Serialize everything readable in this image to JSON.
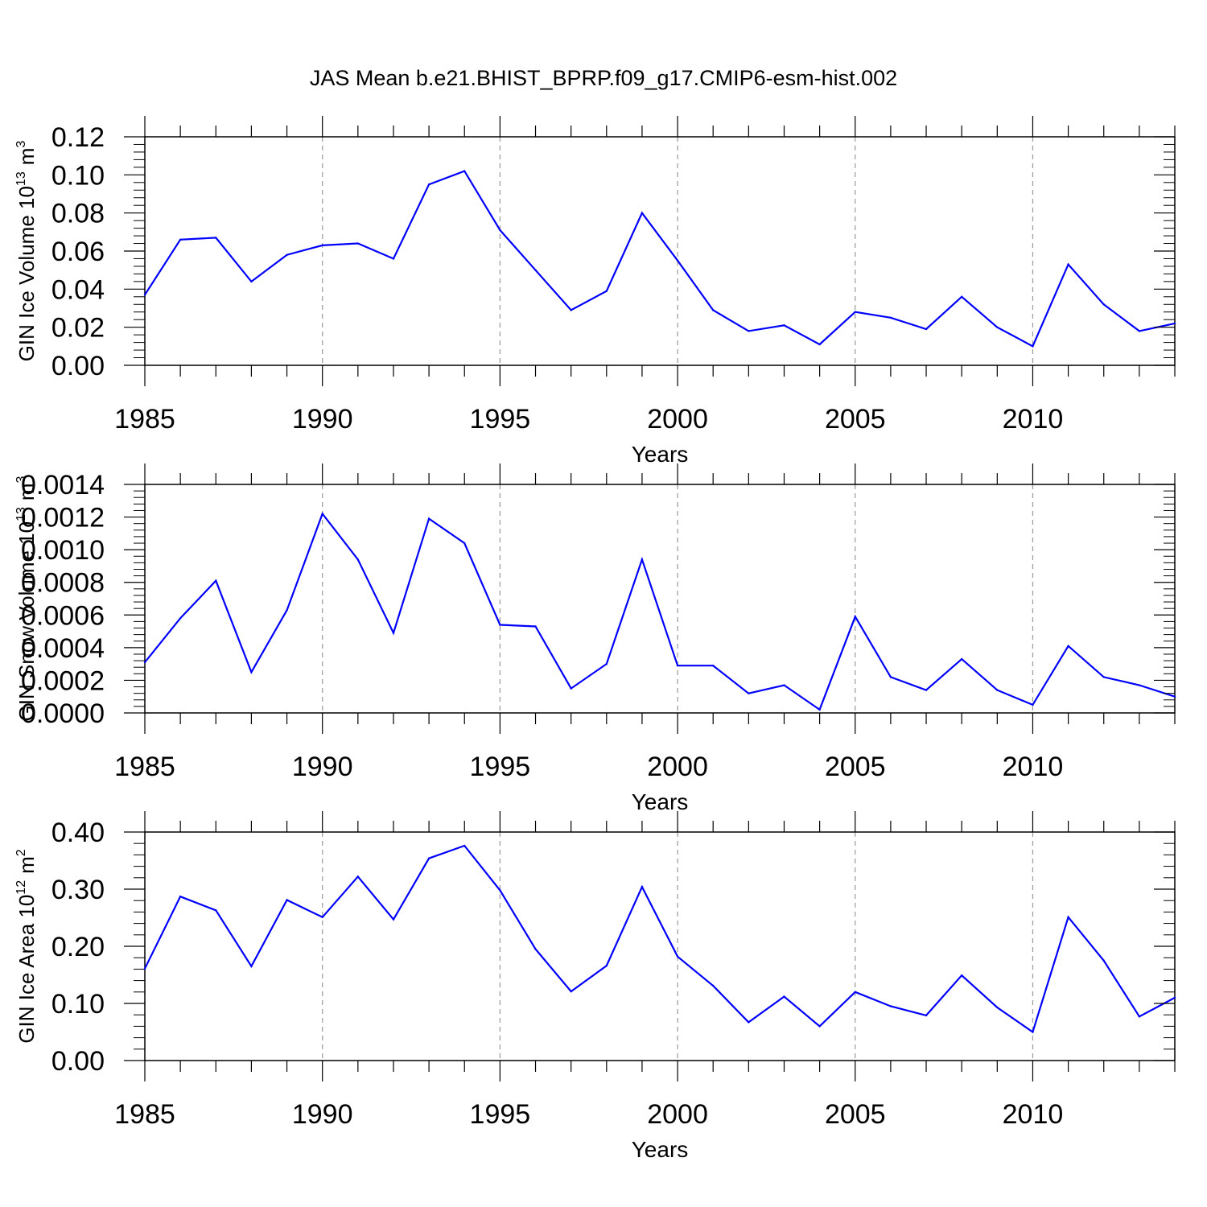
{
  "figure": {
    "title": "JAS Mean b.e21.BHIST_BPRP.f09_g17.CMIP6-esm-hist.002",
    "line_color": "#0000ff",
    "grid_color": "#999999"
  },
  "chart_data": [
    {
      "type": "line",
      "ylabel_main": "GIN Ice Volume 10",
      "ylabel_exp": "13",
      "ylabel_unit": "m",
      "ylabel_unit_exp": "3",
      "xlabel": "Years",
      "xlim": [
        1985,
        2014
      ],
      "ylim": [
        0,
        0.12
      ],
      "x_ticks": [
        "1985",
        "1990",
        "1995",
        "2000",
        "2005",
        "2010"
      ],
      "y_ticks": [
        "0.00",
        "0.02",
        "0.04",
        "0.06",
        "0.08",
        "0.10",
        "0.12"
      ],
      "x": [
        1985,
        1986,
        1987,
        1988,
        1989,
        1990,
        1991,
        1992,
        1993,
        1994,
        1995,
        1996,
        1997,
        1998,
        1999,
        2000,
        2001,
        2002,
        2003,
        2004,
        2005,
        2006,
        2007,
        2008,
        2009,
        2010,
        2011,
        2012,
        2013,
        2014
      ],
      "values": [
        0.037,
        0.066,
        0.067,
        0.044,
        0.058,
        0.063,
        0.064,
        0.056,
        0.095,
        0.102,
        0.071,
        0.05,
        0.029,
        0.039,
        0.08,
        0.055,
        0.029,
        0.018,
        0.021,
        0.011,
        0.028,
        0.025,
        0.019,
        0.036,
        0.02,
        0.01,
        0.053,
        0.032,
        0.018,
        0.022
      ]
    },
    {
      "type": "line",
      "ylabel_main": "GIN Snow Volume 10",
      "ylabel_exp": "13",
      "ylabel_unit": "m",
      "ylabel_unit_exp": "3",
      "xlabel": "Years",
      "xlim": [
        1985,
        2014
      ],
      "ylim": [
        0,
        0.0014
      ],
      "x_ticks": [
        "1985",
        "1990",
        "1995",
        "2000",
        "2005",
        "2010"
      ],
      "y_ticks": [
        "0.0000",
        "0.0002",
        "0.0004",
        "0.0006",
        "0.0008",
        "0.0010",
        "0.0012",
        "0.0014"
      ],
      "x": [
        1985,
        1986,
        1987,
        1988,
        1989,
        1990,
        1991,
        1992,
        1993,
        1994,
        1995,
        1996,
        1997,
        1998,
        1999,
        2000,
        2001,
        2002,
        2003,
        2004,
        2005,
        2006,
        2007,
        2008,
        2009,
        2010,
        2011,
        2012,
        2013,
        2014
      ],
      "values": [
        0.00031,
        0.00058,
        0.00081,
        0.00025,
        0.00063,
        0.00122,
        0.00094,
        0.00049,
        0.00119,
        0.00104,
        0.00054,
        0.00053,
        0.00015,
        0.0003,
        0.00094,
        0.00029,
        0.00029,
        0.00012,
        0.00017,
        2e-05,
        0.00059,
        0.00022,
        0.00014,
        0.00033,
        0.00014,
        5e-05,
        0.00041,
        0.00022,
        0.00017,
        0.0001
      ]
    },
    {
      "type": "line",
      "ylabel_main": "GIN Ice Area 10",
      "ylabel_exp": "12",
      "ylabel_unit": "m",
      "ylabel_unit_exp": "2",
      "xlabel": "Years",
      "xlim": [
        1985,
        2014
      ],
      "ylim": [
        0,
        0.4
      ],
      "x_ticks": [
        "1985",
        "1990",
        "1995",
        "2000",
        "2005",
        "2010"
      ],
      "y_ticks": [
        "0.00",
        "0.10",
        "0.20",
        "0.30",
        "0.40"
      ],
      "x": [
        1985,
        1986,
        1987,
        1988,
        1989,
        1990,
        1991,
        1992,
        1993,
        1994,
        1995,
        1996,
        1997,
        1998,
        1999,
        2000,
        2001,
        2002,
        2003,
        2004,
        2005,
        2006,
        2007,
        2008,
        2009,
        2010,
        2011,
        2012,
        2013,
        2014
      ],
      "values": [
        0.161,
        0.287,
        0.263,
        0.165,
        0.281,
        0.251,
        0.322,
        0.247,
        0.354,
        0.376,
        0.298,
        0.195,
        0.121,
        0.166,
        0.304,
        0.182,
        0.131,
        0.067,
        0.112,
        0.06,
        0.12,
        0.095,
        0.079,
        0.149,
        0.093,
        0.05,
        0.251,
        0.175,
        0.077,
        0.11
      ]
    }
  ]
}
